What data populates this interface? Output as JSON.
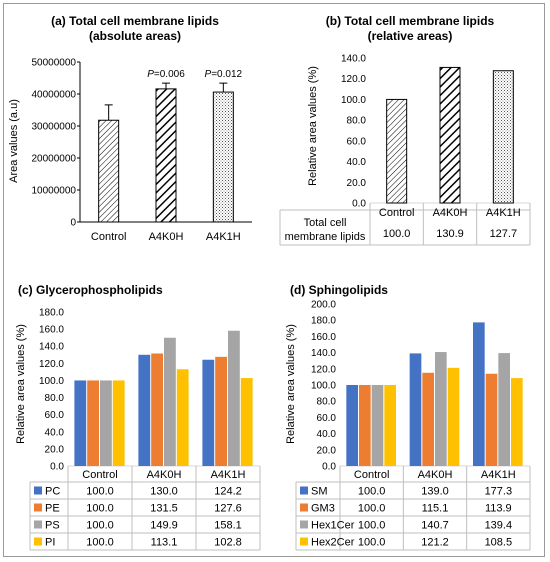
{
  "colors": {
    "PC": "#4472C4",
    "PE": "#ED7D31",
    "PS": "#A5A5A5",
    "PI": "#FFC000",
    "SM": "#4472C4",
    "GM3": "#ED7D31",
    "Hex1Cer": "#A5A5A5",
    "Hex2Cer": "#FFC000"
  },
  "chart_data": [
    {
      "id": "a",
      "type": "bar",
      "title": "(a) Total cell membrane lipids",
      "subtitle": "(absolute areas)",
      "ylabel": "Area values (a.u)",
      "categories": [
        "Control",
        "A4K0H",
        "A4K1H"
      ],
      "values": [
        31800000,
        41600000,
        40600000
      ],
      "errors": [
        4800000,
        1800000,
        2800000
      ],
      "annotations": [
        "",
        "P=0.006",
        "P=0.012"
      ],
      "patterns": [
        "diag-thin",
        "diag-bold",
        "dots"
      ],
      "ylim": [
        0,
        50000000
      ],
      "yticks": [
        "0",
        "10000000",
        "20000000",
        "30000000",
        "40000000",
        "50000000"
      ],
      "grid": false
    },
    {
      "id": "b",
      "type": "bar",
      "title": "(b) Total cell membrane lipids",
      "subtitle": "(relative areas)",
      "ylabel": "Relative area values (%)",
      "categories": [
        "Control",
        "A4K0H",
        "A4K1H"
      ],
      "values": [
        100.0,
        130.9,
        127.7
      ],
      "patterns": [
        "diag-thin",
        "diag-bold",
        "dots"
      ],
      "ylim": [
        0,
        140
      ],
      "yticks": [
        "0.0",
        "20.0",
        "40.0",
        "60.0",
        "80.0",
        "100.0",
        "120.0",
        "140.0"
      ],
      "table_row_label": [
        "Total cell",
        "membrane lipids"
      ],
      "table_values": [
        "100.0",
        "130.9",
        "127.7"
      ],
      "grid": false
    },
    {
      "id": "c",
      "type": "bar",
      "title": "(c) Glycerophospholipids",
      "ylabel": "Relative area values (%)",
      "categories": [
        "Control",
        "A4K0H",
        "A4K1H"
      ],
      "series": [
        {
          "name": "PC",
          "values": [
            100.0,
            130.0,
            124.2
          ],
          "labels": [
            "100.0",
            "130.0",
            "124.2"
          ]
        },
        {
          "name": "PE",
          "values": [
            100.0,
            131.5,
            127.6
          ],
          "labels": [
            "100.0",
            "131.5",
            "127.6"
          ]
        },
        {
          "name": "PS",
          "values": [
            100.0,
            149.9,
            158.1
          ],
          "labels": [
            "100.0",
            "149.9",
            "158.1"
          ]
        },
        {
          "name": "PI",
          "values": [
            100.0,
            113.1,
            102.8
          ],
          "labels": [
            "100.0",
            "113.1",
            "102.8"
          ]
        }
      ],
      "ylim": [
        0,
        180
      ],
      "yticks": [
        "0.0",
        "20.0",
        "40.0",
        "60.0",
        "80.0",
        "100.0",
        "120.0",
        "140.0",
        "160.0",
        "180.0"
      ],
      "grid": false
    },
    {
      "id": "d",
      "type": "bar",
      "title": "(d) Sphingolipids",
      "ylabel": "Relative area values (%)",
      "categories": [
        "Control",
        "A4K0H",
        "A4K1H"
      ],
      "series": [
        {
          "name": "SM",
          "values": [
            100.0,
            139.0,
            177.3
          ],
          "labels": [
            "100.0",
            "139.0",
            "177.3"
          ]
        },
        {
          "name": "GM3",
          "values": [
            100.0,
            115.1,
            113.9
          ],
          "labels": [
            "100.0",
            "115.1",
            "113.9"
          ]
        },
        {
          "name": "Hex1Cer",
          "values": [
            100.0,
            140.7,
            139.4
          ],
          "labels": [
            "100.0",
            "140.7",
            "139.4"
          ]
        },
        {
          "name": "Hex2Cer",
          "values": [
            100.0,
            121.2,
            108.5
          ],
          "labels": [
            "100.0",
            "121.2",
            "108.5"
          ]
        }
      ],
      "ylim": [
        0,
        200
      ],
      "yticks": [
        "0.0",
        "20.0",
        "40.0",
        "60.0",
        "80.0",
        "100.0",
        "120.0",
        "140.0",
        "160.0",
        "180.0",
        "200.0"
      ],
      "grid": false
    }
  ]
}
